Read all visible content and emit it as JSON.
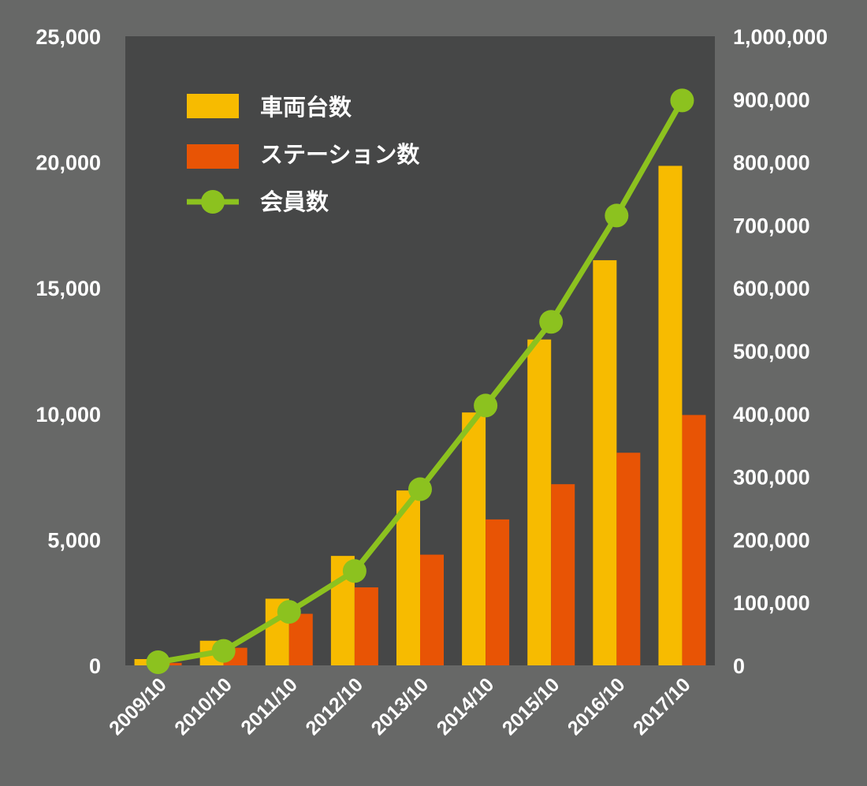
{
  "colors": {
    "background": "#676867",
    "plot_area": "#464747",
    "vehicles": "#f7bb00",
    "stations": "#e85405",
    "members": "#8cc21f",
    "text": "#ffffff"
  },
  "chart_data": {
    "type": "bar",
    "categories": [
      "2009/10",
      "2010/10",
      "2011/10",
      "2012/10",
      "2013/10",
      "2014/10",
      "2015/10",
      "2016/10",
      "2017/10"
    ],
    "series": [
      {
        "name": "車両台数",
        "type": "bar",
        "axis": "left",
        "color": "#f7bb00",
        "values": [
          250,
          980,
          2650,
          4350,
          6950,
          10050,
          12950,
          16100,
          19850
        ]
      },
      {
        "name": "ステーション数",
        "type": "bar",
        "axis": "left",
        "color": "#e85405",
        "values": [
          100,
          700,
          2050,
          3100,
          4400,
          5800,
          7200,
          8450,
          9950
        ]
      },
      {
        "name": "会員数",
        "type": "line",
        "axis": "right",
        "color": "#8cc21f",
        "values": [
          5000,
          23000,
          85000,
          150000,
          280000,
          413000,
          546000,
          715000,
          898000
        ]
      }
    ],
    "y_left": {
      "min": 0,
      "max": 25000,
      "ticks": [
        "0",
        "5,000",
        "10,000",
        "15,000",
        "20,000",
        "25,000"
      ]
    },
    "y_right": {
      "min": 0,
      "max": 1000000,
      "ticks": [
        "0",
        "100,000",
        "200,000",
        "300,000",
        "400,000",
        "500,000",
        "600,000",
        "700,000",
        "800,000",
        "900,000",
        "1,000,000"
      ]
    },
    "legend_position": "top-left",
    "grid": false
  }
}
